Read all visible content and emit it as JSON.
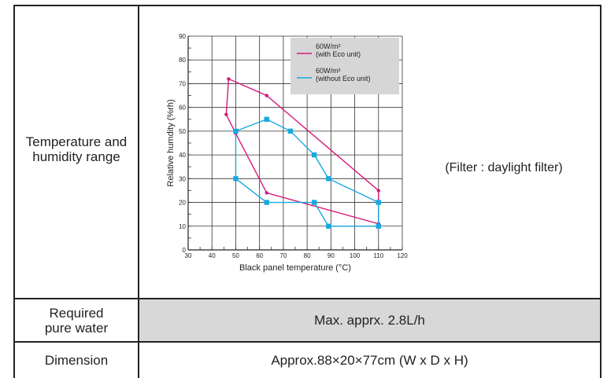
{
  "rows": [
    {
      "label": "Temperature and humidity range",
      "note": "(Filter : daylight filter)"
    },
    {
      "label": "Required pure water",
      "value": "Max. apprx. 2.8L/h"
    },
    {
      "label": "Dimension",
      "value": "Approx.88×20×77cm (W x D x H)"
    }
  ],
  "chart_data": {
    "type": "line",
    "xlabel": "Black panel temperature (°C)",
    "ylabel": "Relative humdity (%rh)",
    "xlim": [
      30,
      120
    ],
    "ylim": [
      0,
      90
    ],
    "x_ticks": [
      30,
      40,
      50,
      60,
      70,
      80,
      90,
      100,
      110,
      120
    ],
    "y_ticks": [
      0,
      10,
      20,
      30,
      40,
      50,
      60,
      70,
      80,
      90
    ],
    "grid": true,
    "legend_position": "top-right",
    "series": [
      {
        "name": "60W/m² (with Eco unit)",
        "legend_line1": "60W/m²",
        "legend_line2": "(with Eco unit)",
        "color": "#d6197a",
        "marker": "circle",
        "closed": true,
        "points": [
          [
            47,
            72
          ],
          [
            63,
            65
          ],
          [
            110,
            25
          ],
          [
            110,
            11
          ],
          [
            63,
            24
          ],
          [
            50,
            49
          ],
          [
            46,
            57
          ]
        ]
      },
      {
        "name": "60W/m² (without Eco unit)",
        "legend_line1": "60W/m²",
        "legend_line2": "(without Eco unit)",
        "color": "#17a9de",
        "marker": "square",
        "closed": true,
        "points": [
          [
            50,
            50
          ],
          [
            63,
            55
          ],
          [
            73,
            50
          ],
          [
            83,
            40
          ],
          [
            89,
            30
          ],
          [
            110,
            20
          ],
          [
            110,
            10
          ],
          [
            89,
            10
          ],
          [
            83,
            20
          ],
          [
            63,
            20
          ],
          [
            50,
            30
          ]
        ]
      }
    ]
  }
}
